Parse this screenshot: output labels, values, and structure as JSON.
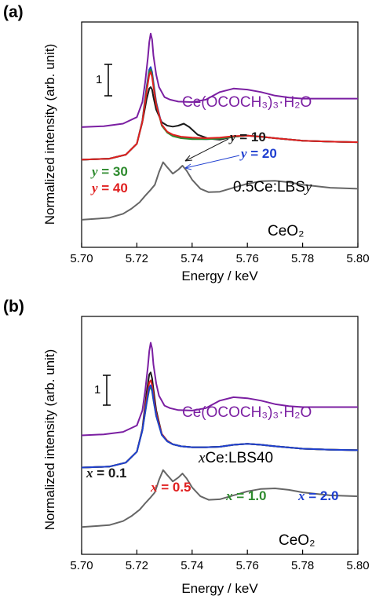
{
  "colors": {
    "purple": "#7B1FA2",
    "black": "#1a1a1a",
    "gray": "#666666",
    "green": "#2e8b2e",
    "red": "#e02020",
    "blue": "#1f3fd0",
    "scale_bar": "#000000"
  },
  "chart_data": [
    {
      "type": "line",
      "panel_label": "(a)",
      "xlabel": "Energy / keV",
      "ylabel": "Normalized intensity (arb. unit)",
      "xlim": [
        5.7,
        5.8
      ],
      "xticks": [
        "5.70",
        "5.72",
        "5.74",
        "5.76",
        "5.78",
        "5.80"
      ],
      "scale_bar_label": "1",
      "labels": {
        "ref_acetate": "Ce(OCOCH₃)₃·H₂O",
        "ref_ceo2": "CeO₂",
        "sample_prefix": "0.5Ce:LBS",
        "sample_var": "y",
        "y10_var": "y",
        "y10_val": " = 10",
        "y20_var": "y",
        "y20_val": " = 20",
        "y30_var": "y",
        "y30_val": " = 30",
        "y40_var": "y",
        "y40_val": " = 40"
      },
      "series": [
        {
          "name": "Ce(OCOCH₃)₃·H₂O",
          "color": "#7B1FA2",
          "x": [
            5.7,
            5.708,
            5.715,
            5.72,
            5.722,
            5.723,
            5.724,
            5.7245,
            5.725,
            5.7255,
            5.726,
            5.727,
            5.728,
            5.73,
            5.732,
            5.735,
            5.74,
            5.745,
            5.75,
            5.755,
            5.76,
            5.765,
            5.77,
            5.775,
            5.78,
            5.79,
            5.8
          ],
          "y": [
            1.85,
            1.87,
            1.92,
            2.05,
            2.35,
            2.75,
            3.25,
            3.55,
            3.72,
            3.6,
            3.28,
            2.9,
            2.65,
            2.45,
            2.4,
            2.36,
            2.35,
            2.4,
            2.55,
            2.62,
            2.6,
            2.55,
            2.48,
            2.44,
            2.42,
            2.42,
            2.42
          ]
        },
        {
          "name": "y = 10",
          "color": "#1a1a1a",
          "x": [
            5.7,
            5.71,
            5.716,
            5.72,
            5.722,
            5.7235,
            5.7245,
            5.725,
            5.7255,
            5.726,
            5.727,
            5.729,
            5.731,
            5.733,
            5.735,
            5.737,
            5.739,
            5.742,
            5.746,
            5.75,
            5.755,
            5.76,
            5.765,
            5.77,
            5.78,
            5.79,
            5.8
          ],
          "y": [
            1.2,
            1.22,
            1.3,
            1.52,
            1.95,
            2.4,
            2.62,
            2.65,
            2.6,
            2.45,
            2.2,
            1.95,
            1.88,
            1.86,
            1.88,
            1.92,
            1.85,
            1.7,
            1.62,
            1.6,
            1.66,
            1.68,
            1.66,
            1.63,
            1.58,
            1.56,
            1.55
          ]
        },
        {
          "name": "y = 20",
          "color": "#1f3fd0",
          "x": [
            5.7,
            5.71,
            5.716,
            5.72,
            5.722,
            5.7235,
            5.7245,
            5.725,
            5.7255,
            5.726,
            5.727,
            5.729,
            5.731,
            5.733,
            5.736,
            5.74,
            5.745,
            5.75,
            5.755,
            5.76,
            5.765,
            5.77,
            5.78,
            5.79,
            5.8
          ],
          "y": [
            1.2,
            1.22,
            1.3,
            1.52,
            1.98,
            2.65,
            3.0,
            3.05,
            2.95,
            2.75,
            2.35,
            1.9,
            1.75,
            1.68,
            1.64,
            1.62,
            1.61,
            1.62,
            1.66,
            1.68,
            1.66,
            1.63,
            1.58,
            1.56,
            1.55
          ]
        },
        {
          "name": "y = 30",
          "color": "#2e8b2e",
          "x": [
            5.7,
            5.71,
            5.716,
            5.72,
            5.722,
            5.7235,
            5.7245,
            5.725,
            5.7255,
            5.726,
            5.727,
            5.729,
            5.731,
            5.733,
            5.736,
            5.74,
            5.745,
            5.75,
            5.755,
            5.76,
            5.765,
            5.77,
            5.78,
            5.79,
            5.8
          ],
          "y": [
            1.2,
            1.22,
            1.3,
            1.52,
            1.97,
            2.6,
            2.95,
            3.0,
            2.9,
            2.7,
            2.32,
            1.88,
            1.74,
            1.67,
            1.63,
            1.61,
            1.61,
            1.62,
            1.66,
            1.68,
            1.66,
            1.63,
            1.58,
            1.56,
            1.55
          ]
        },
        {
          "name": "y = 40",
          "color": "#e02020",
          "x": [
            5.7,
            5.71,
            5.716,
            5.72,
            5.722,
            5.7235,
            5.7245,
            5.725,
            5.7255,
            5.726,
            5.727,
            5.729,
            5.731,
            5.733,
            5.736,
            5.74,
            5.745,
            5.75,
            5.755,
            5.76,
            5.765,
            5.77,
            5.78,
            5.79,
            5.8
          ],
          "y": [
            1.2,
            1.22,
            1.3,
            1.52,
            1.96,
            2.55,
            2.9,
            2.95,
            2.85,
            2.66,
            2.3,
            1.9,
            1.76,
            1.7,
            1.66,
            1.64,
            1.63,
            1.64,
            1.67,
            1.68,
            1.66,
            1.63,
            1.58,
            1.56,
            1.55
          ]
        },
        {
          "name": "CeO₂",
          "color": "#666666",
          "x": [
            5.7,
            5.71,
            5.715,
            5.718,
            5.721,
            5.723,
            5.725,
            5.7265,
            5.728,
            5.7295,
            5.731,
            5.733,
            5.735,
            5.7365,
            5.738,
            5.74,
            5.743,
            5.746,
            5.75,
            5.755,
            5.76,
            5.765,
            5.77,
            5.775,
            5.78,
            5.79,
            5.8
          ],
          "y": [
            0.0,
            0.04,
            0.12,
            0.22,
            0.35,
            0.48,
            0.6,
            0.7,
            0.95,
            1.15,
            1.05,
            0.92,
            1.0,
            1.08,
            0.98,
            0.8,
            0.62,
            0.55,
            0.56,
            0.64,
            0.72,
            0.77,
            0.78,
            0.75,
            0.7,
            0.64,
            0.62
          ]
        }
      ]
    },
    {
      "type": "line",
      "panel_label": "(b)",
      "xlabel": "Energy / keV",
      "ylabel": "Normalized intensity (arb. unit)",
      "xlim": [
        5.7,
        5.8
      ],
      "xticks": [
        "5.70",
        "5.72",
        "5.74",
        "5.76",
        "5.78",
        "5.80"
      ],
      "scale_bar_label": "1",
      "labels": {
        "ref_acetate": "Ce(OCOCH₃)₃·H₂O",
        "ref_ceo2": "CeO₂",
        "sample_var": "x",
        "sample_suffix": "Ce:LBS40",
        "x01_var": "x",
        "x01_val": " = 0.1",
        "x05_var": "x",
        "x05_val": " = 0.5",
        "x10_var": "x",
        "x10_val": " = 1.0",
        "x20_var": "x",
        "x20_val": " = 2.0"
      },
      "series": [
        {
          "name": "Ce(OCOCH₃)₃·H₂O",
          "color": "#7B1FA2",
          "x": [
            5.7,
            5.708,
            5.715,
            5.72,
            5.722,
            5.723,
            5.724,
            5.7245,
            5.725,
            5.7255,
            5.726,
            5.727,
            5.728,
            5.73,
            5.732,
            5.735,
            5.74,
            5.745,
            5.75,
            5.755,
            5.76,
            5.765,
            5.77,
            5.775,
            5.78,
            5.79,
            5.8
          ],
          "y": [
            1.85,
            1.87,
            1.92,
            2.05,
            2.35,
            2.75,
            3.25,
            3.55,
            3.72,
            3.6,
            3.28,
            2.9,
            2.65,
            2.45,
            2.4,
            2.36,
            2.35,
            2.4,
            2.55,
            2.62,
            2.6,
            2.55,
            2.48,
            2.44,
            2.42,
            2.42,
            2.42
          ]
        },
        {
          "name": "x = 0.1",
          "color": "#1a1a1a",
          "x": [
            5.7,
            5.71,
            5.716,
            5.72,
            5.722,
            5.7235,
            5.7245,
            5.725,
            5.7255,
            5.726,
            5.727,
            5.729,
            5.731,
            5.733,
            5.736,
            5.74,
            5.745,
            5.75,
            5.755,
            5.76,
            5.765,
            5.77,
            5.78,
            5.79,
            5.8
          ],
          "y": [
            1.2,
            1.22,
            1.3,
            1.52,
            1.98,
            2.7,
            3.08,
            3.12,
            3.0,
            2.78,
            2.36,
            1.88,
            1.74,
            1.67,
            1.63,
            1.61,
            1.61,
            1.62,
            1.66,
            1.68,
            1.66,
            1.63,
            1.58,
            1.56,
            1.55
          ]
        },
        {
          "name": "x = 0.5",
          "color": "#e02020",
          "x": [
            5.7,
            5.71,
            5.716,
            5.72,
            5.722,
            5.7235,
            5.7245,
            5.725,
            5.7255,
            5.726,
            5.727,
            5.729,
            5.731,
            5.733,
            5.736,
            5.74,
            5.745,
            5.75,
            5.755,
            5.76,
            5.765,
            5.77,
            5.78,
            5.79,
            5.8
          ],
          "y": [
            1.2,
            1.22,
            1.3,
            1.52,
            1.96,
            2.58,
            2.92,
            2.96,
            2.86,
            2.66,
            2.3,
            1.88,
            1.74,
            1.67,
            1.63,
            1.61,
            1.61,
            1.62,
            1.66,
            1.68,
            1.66,
            1.63,
            1.58,
            1.56,
            1.55
          ]
        },
        {
          "name": "x = 1.0",
          "color": "#2e8b2e",
          "x": [
            5.7,
            5.71,
            5.716,
            5.72,
            5.722,
            5.7235,
            5.7245,
            5.725,
            5.7255,
            5.726,
            5.727,
            5.729,
            5.731,
            5.733,
            5.736,
            5.74,
            5.745,
            5.75,
            5.755,
            5.76,
            5.765,
            5.77,
            5.78,
            5.79,
            5.8
          ],
          "y": [
            1.2,
            1.22,
            1.3,
            1.52,
            1.95,
            2.48,
            2.78,
            2.82,
            2.74,
            2.56,
            2.24,
            1.86,
            1.73,
            1.67,
            1.63,
            1.61,
            1.61,
            1.62,
            1.66,
            1.68,
            1.66,
            1.63,
            1.58,
            1.56,
            1.55
          ]
        },
        {
          "name": "x = 2.0",
          "color": "#1f3fd0",
          "x": [
            5.7,
            5.71,
            5.716,
            5.72,
            5.722,
            5.7235,
            5.7245,
            5.725,
            5.7255,
            5.726,
            5.727,
            5.729,
            5.731,
            5.733,
            5.736,
            5.74,
            5.745,
            5.75,
            5.755,
            5.76,
            5.765,
            5.77,
            5.78,
            5.79,
            5.8
          ],
          "y": [
            1.2,
            1.22,
            1.3,
            1.52,
            1.95,
            2.5,
            2.82,
            2.86,
            2.77,
            2.58,
            2.25,
            1.86,
            1.73,
            1.67,
            1.63,
            1.61,
            1.61,
            1.62,
            1.66,
            1.68,
            1.66,
            1.63,
            1.58,
            1.56,
            1.55
          ]
        },
        {
          "name": "CeO₂",
          "color": "#666666",
          "x": [
            5.7,
            5.71,
            5.715,
            5.718,
            5.721,
            5.723,
            5.725,
            5.7265,
            5.728,
            5.7295,
            5.731,
            5.733,
            5.735,
            5.7365,
            5.738,
            5.74,
            5.743,
            5.746,
            5.75,
            5.755,
            5.76,
            5.765,
            5.77,
            5.775,
            5.78,
            5.79,
            5.8
          ],
          "y": [
            0.0,
            0.04,
            0.12,
            0.22,
            0.35,
            0.48,
            0.6,
            0.7,
            0.95,
            1.15,
            1.05,
            0.92,
            1.0,
            1.08,
            0.98,
            0.8,
            0.62,
            0.55,
            0.56,
            0.64,
            0.72,
            0.77,
            0.78,
            0.75,
            0.7,
            0.64,
            0.62
          ]
        }
      ]
    }
  ]
}
